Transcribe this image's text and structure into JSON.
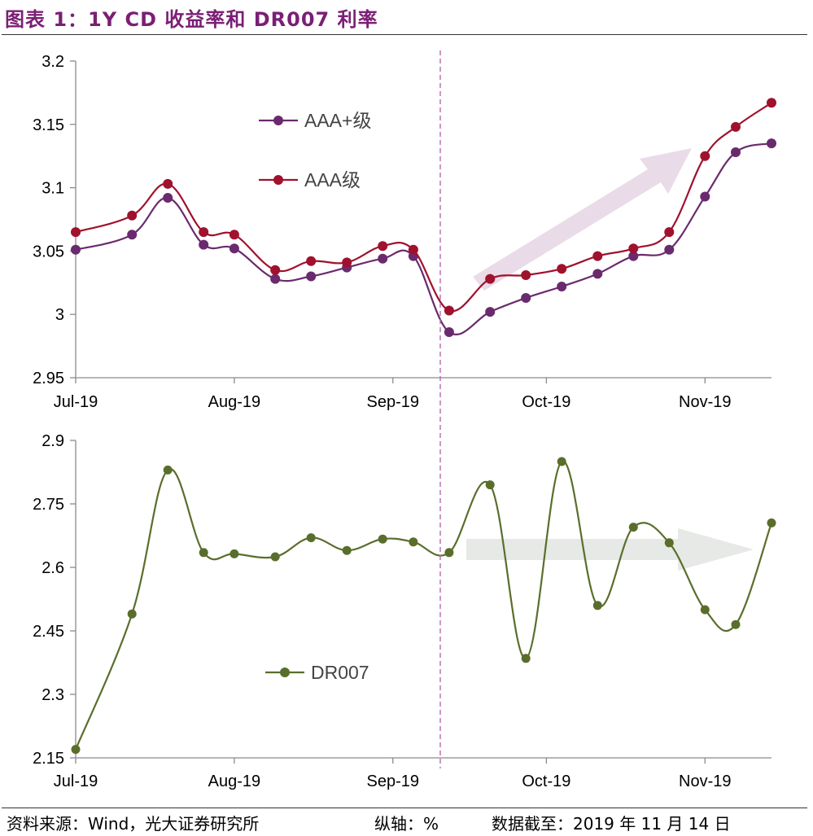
{
  "title": "图表 1：1Y CD 收益率和 DR007 利率",
  "footer": {
    "source": "资料来源：Wind，光大证券研究所",
    "axis_note": "纵轴：%",
    "date": "数据截至：2019 年 11 月 14 日"
  },
  "colors": {
    "title": "#7a1f74",
    "aaa_plus": "#6a2a6e",
    "aaa": "#a0112d",
    "dr007": "#5a6e2c",
    "arrow_up": "#eadbe8",
    "arrow_flat": "#e6e9e6",
    "divider": "#b36ab0"
  },
  "chart_data": [
    {
      "type": "line",
      "x_tick_labels": [
        "Jul-19",
        "Aug-19",
        "Sep-19",
        "Oct-19",
        "Nov-19"
      ],
      "y_tick_labels": [
        "2.95",
        "3",
        "3.05",
        "3.1",
        "3.15",
        "3.2"
      ],
      "ylim": [
        2.95,
        3.2
      ],
      "series": [
        {
          "name": "AAA+级",
          "x": [
            "2019-07-01",
            "2019-07-12",
            "2019-07-19",
            "2019-07-26",
            "2019-08-01",
            "2019-08-09",
            "2019-08-16",
            "2019-08-23",
            "2019-08-30",
            "2019-09-05",
            "2019-09-12",
            "2019-09-20",
            "2019-09-27",
            "2019-10-04",
            "2019-10-11",
            "2019-10-18",
            "2019-10-25",
            "2019-11-01",
            "2019-11-07",
            "2019-11-14"
          ],
          "values": [
            3.051,
            3.063,
            3.092,
            3.055,
            3.052,
            3.028,
            3.03,
            3.037,
            3.044,
            3.046,
            2.986,
            3.002,
            3.013,
            3.022,
            3.032,
            3.046,
            3.051,
            3.093,
            3.128,
            3.135
          ]
        },
        {
          "name": "AAA级",
          "x": [
            "2019-07-01",
            "2019-07-12",
            "2019-07-19",
            "2019-07-26",
            "2019-08-01",
            "2019-08-09",
            "2019-08-16",
            "2019-08-23",
            "2019-08-30",
            "2019-09-05",
            "2019-09-12",
            "2019-09-20",
            "2019-09-27",
            "2019-10-04",
            "2019-10-11",
            "2019-10-18",
            "2019-10-25",
            "2019-11-01",
            "2019-11-07",
            "2019-11-14"
          ],
          "values": [
            3.065,
            3.078,
            3.103,
            3.065,
            3.063,
            3.035,
            3.042,
            3.041,
            3.054,
            3.051,
            3.003,
            3.028,
            3.031,
            3.036,
            3.046,
            3.052,
            3.065,
            3.125,
            3.148,
            3.167
          ]
        }
      ]
    },
    {
      "type": "line",
      "x_tick_labels": [
        "Jul-19",
        "Aug-19",
        "Sep-19",
        "Oct-19",
        "Nov-19"
      ],
      "y_tick_labels": [
        "2.15",
        "2.3",
        "2.45",
        "2.6",
        "2.75",
        "2.9"
      ],
      "ylim": [
        2.15,
        2.9
      ],
      "series": [
        {
          "name": "DR007",
          "x": [
            "2019-07-01",
            "2019-07-12",
            "2019-07-19",
            "2019-07-26",
            "2019-08-01",
            "2019-08-09",
            "2019-08-16",
            "2019-08-23",
            "2019-08-30",
            "2019-09-05",
            "2019-09-12",
            "2019-09-20",
            "2019-09-27",
            "2019-10-04",
            "2019-10-11",
            "2019-10-18",
            "2019-10-25",
            "2019-11-01",
            "2019-11-07",
            "2019-11-14"
          ],
          "values": [
            2.17,
            2.49,
            2.83,
            2.635,
            2.632,
            2.625,
            2.67,
            2.64,
            2.667,
            2.66,
            2.635,
            2.795,
            2.385,
            2.85,
            2.51,
            2.695,
            2.658,
            2.5,
            2.465,
            2.705
          ]
        }
      ]
    }
  ]
}
